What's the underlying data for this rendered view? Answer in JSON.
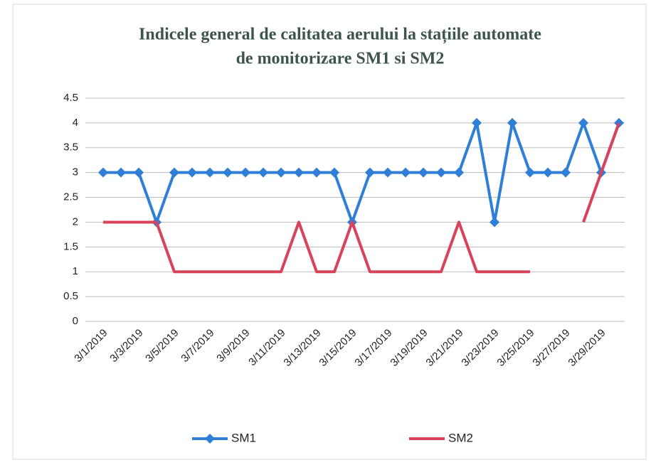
{
  "chart_data": {
    "type": "line",
    "title": [
      "Indicele general de calitatea aerului la stațiile automate",
      "de monitorizare SM1 si SM2"
    ],
    "categories": [
      "3/1/2019",
      null,
      "3/3/2019",
      null,
      "3/5/2019",
      null,
      "3/7/2019",
      null,
      "3/9/2019",
      null,
      "3/11/2019",
      null,
      "3/13/2019",
      null,
      "3/15/2019",
      null,
      "3/17/2019",
      null,
      "3/19/2019",
      null,
      "3/21/2019",
      null,
      "3/23/2019",
      null,
      "3/25/2019",
      null,
      "3/27/2019",
      null,
      "3/29/2019",
      null
    ],
    "series": [
      {
        "name": "SM1",
        "color": "#2f7fd8",
        "marker": "diamond",
        "values": [
          3,
          3,
          3,
          2,
          3,
          3,
          3,
          3,
          3,
          3,
          3,
          3,
          3,
          3,
          2,
          3,
          3,
          3,
          3,
          3,
          3,
          4,
          2,
          4,
          3,
          3,
          3,
          4,
          3,
          4
        ]
      },
      {
        "name": "SM2",
        "color": "#d9435a",
        "values": [
          2,
          2,
          2,
          2,
          1,
          1,
          1,
          1,
          1,
          1,
          1,
          2,
          1,
          1,
          2,
          1,
          1,
          1,
          1,
          1,
          2,
          1,
          1,
          1,
          1,
          null,
          null,
          2,
          3,
          4
        ]
      }
    ],
    "ylim": [
      0,
      4.5
    ],
    "yticks": [
      0,
      0.5,
      1,
      1.5,
      2,
      2.5,
      3,
      3.5,
      4,
      4.5
    ],
    "grid": true,
    "legend": "bottom"
  }
}
